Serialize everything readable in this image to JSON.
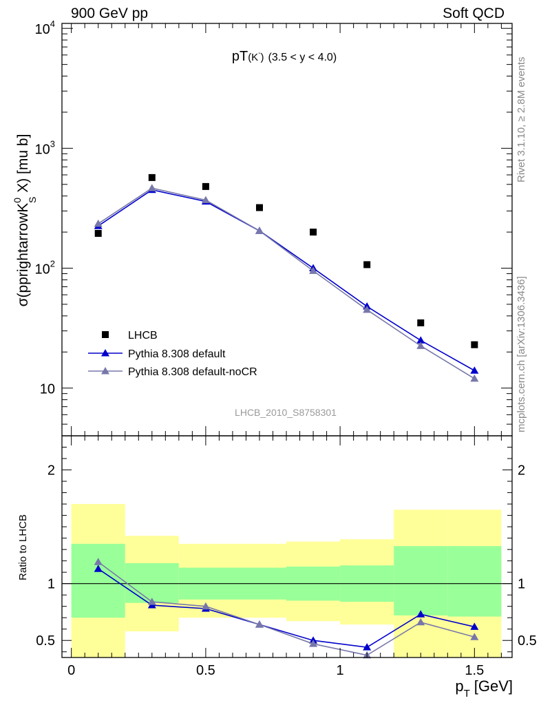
{
  "chart_data": [
    {
      "type": "scatter",
      "header_left": "900 GeV pp",
      "header_right": "Soft QCD",
      "title_main": "pT",
      "title_sub": "(K",
      "title_sup": "-",
      "title_close": ")",
      "title_range": "(3.5 < y < 4.0)",
      "ylabel_pre": "σ(pprightarrowK",
      "ylabel_sup": "0",
      "ylabel_sub": "S",
      "ylabel_post": " X) [mu b]",
      "yscale": "log",
      "ylim": [
        4,
        11000
      ],
      "xlim": [
        -0.035,
        1.64
      ],
      "ytick_decades": [
        {
          "value": 10,
          "base": "10",
          "exp": ""
        },
        {
          "value": 100,
          "base": "10",
          "exp": "2"
        },
        {
          "value": 1000,
          "base": "10",
          "exp": "3"
        },
        {
          "value": 10000,
          "base": "10",
          "exp": "4"
        }
      ],
      "watermark": "LHCB_2010_S8758301",
      "side_label_top": "Rivet 3.1.10, ≥ 2.8M events",
      "side_label_bottom": "mcplots.cern.ch [arXiv:1306.3436]",
      "legend_position": "lower-left",
      "series": [
        {
          "name": "LHCB",
          "marker": "square",
          "color": "#000000",
          "x": [
            0.1,
            0.3,
            0.5,
            0.7,
            0.9,
            1.1,
            1.3,
            1.5
          ],
          "y": [
            195,
            570,
            480,
            320,
            200,
            107,
            35,
            23
          ]
        },
        {
          "name": "Pythia 8.308 default",
          "marker": "triangle",
          "color": "#0000cc",
          "x": [
            0.1,
            0.3,
            0.5,
            0.7,
            0.9,
            1.1,
            1.3,
            1.5
          ],
          "y": [
            225,
            450,
            360,
            205,
            100,
            48,
            25,
            14
          ]
        },
        {
          "name": "Pythia 8.308 default-noCR",
          "marker": "triangle",
          "color": "#7777aa",
          "x": [
            0.1,
            0.3,
            0.5,
            0.7,
            0.9,
            1.1,
            1.3,
            1.5
          ],
          "y": [
            235,
            465,
            370,
            205,
            95,
            45,
            22.5,
            12
          ]
        }
      ]
    },
    {
      "type": "scatter",
      "ylabel": "Ratio to LHCB",
      "xlabel_main": "p",
      "xlabel_sub": "T",
      "xlabel_unit": "[GeV]",
      "ylim": [
        0.35,
        2.3
      ],
      "xlim": [
        -0.035,
        1.64
      ],
      "xticks": [
        {
          "value": 0,
          "label": "0"
        },
        {
          "value": 0.5,
          "label": "0.5"
        },
        {
          "value": 1,
          "label": "1"
        },
        {
          "value": 1.5,
          "label": "1.5"
        }
      ],
      "yticks": [
        {
          "value": 0.5,
          "label": "0.5"
        },
        {
          "value": 1,
          "label": "1"
        },
        {
          "value": 2,
          "label": "2"
        }
      ],
      "reference_line": 1,
      "bands": {
        "yellow_color": "#ffff99",
        "green_color": "#99ff99",
        "bins": [
          {
            "xlo": 0.0,
            "xhi": 0.2,
            "y_lo": 0.3,
            "y_hi": 1.7,
            "g_lo": 0.7,
            "g_hi": 1.35
          },
          {
            "xlo": 0.2,
            "xhi": 0.4,
            "y_lo": 0.58,
            "y_hi": 1.42,
            "g_lo": 0.83,
            "g_hi": 1.18
          },
          {
            "xlo": 0.4,
            "xhi": 0.8,
            "y_lo": 0.7,
            "y_hi": 1.35,
            "g_lo": 0.86,
            "g_hi": 1.14
          },
          {
            "xlo": 0.8,
            "xhi": 1.0,
            "y_lo": 0.67,
            "y_hi": 1.37,
            "g_lo": 0.85,
            "g_hi": 1.15
          },
          {
            "xlo": 1.0,
            "xhi": 1.2,
            "y_lo": 0.64,
            "y_hi": 1.39,
            "g_lo": 0.84,
            "g_hi": 1.16
          },
          {
            "xlo": 1.2,
            "xhi": 1.4,
            "y_lo": 0.3,
            "y_hi": 1.65,
            "g_lo": 0.72,
            "g_hi": 1.33
          },
          {
            "xlo": 1.4,
            "xhi": 1.6,
            "y_lo": 0.3,
            "y_hi": 1.65,
            "g_lo": 0.71,
            "g_hi": 1.33
          }
        ]
      },
      "series": [
        {
          "name": "Pythia 8.308 default",
          "marker": "triangle",
          "color": "#0000cc",
          "x": [
            0.1,
            0.3,
            0.5,
            0.7,
            0.9,
            1.1,
            1.3,
            1.5
          ],
          "y": [
            1.13,
            0.81,
            0.78,
            0.64,
            0.5,
            0.44,
            0.73,
            0.62
          ]
        },
        {
          "name": "Pythia 8.308 default-noCR",
          "marker": "triangle",
          "color": "#7777aa",
          "x": [
            0.1,
            0.3,
            0.5,
            0.7,
            0.9,
            1.1,
            1.3,
            1.5
          ],
          "y": [
            1.19,
            0.84,
            0.8,
            0.64,
            0.47,
            0.37,
            0.66,
            0.53
          ]
        }
      ]
    }
  ]
}
